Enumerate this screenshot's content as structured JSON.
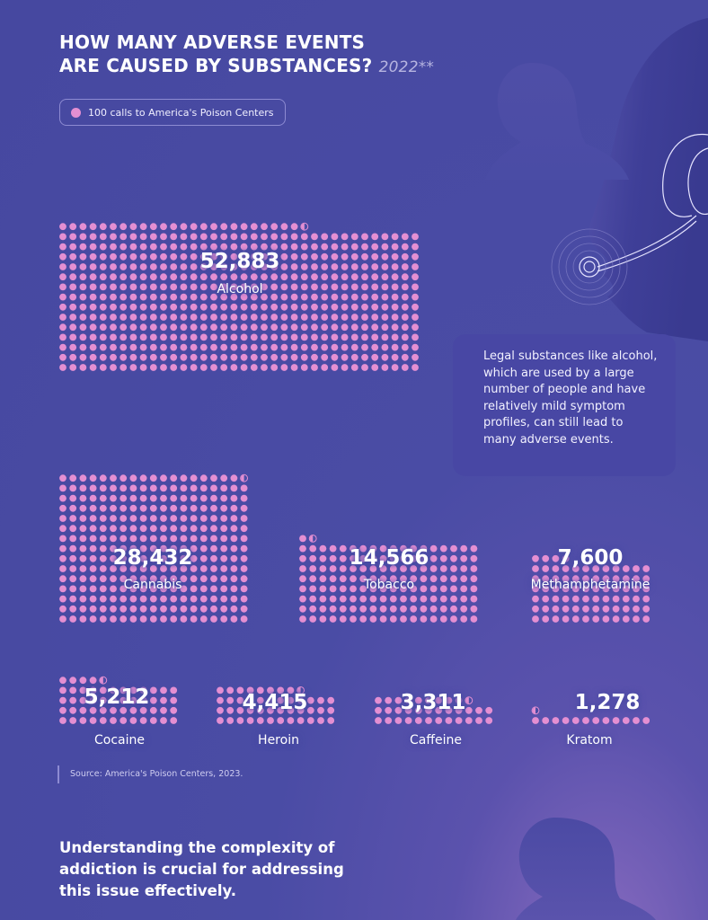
{
  "title": {
    "line1": "HOW MANY ADVERSE EVENTS",
    "line2": "ARE CAUSED BY SUBSTANCES?",
    "year": "2022**"
  },
  "legend": {
    "label": "100 calls to America's Poison Centers"
  },
  "callout": {
    "text": "Legal substances like alcohol, which are used by a large number of people and have relatively mild symptom profiles, can still lead to many adverse events."
  },
  "source": "Source: America's Poison Centers, 2023.",
  "bottom_text": "Understanding the complexity of addiction is crucial for addressing this issue effectively.",
  "colors": {
    "background": "#4a4ca5",
    "dot": "#e48fd2",
    "text": "#ffffff",
    "silhouette": "#3f3e94"
  },
  "chart_data": {
    "type": "waffle",
    "unit": "100 calls to America's Poison Centers",
    "title": "HOW MANY ADVERSE EVENTS ARE CAUSED BY SUBSTANCES? 2022**",
    "series": [
      {
        "name": "Alcohol",
        "value": 52883,
        "value_label": "52,883"
      },
      {
        "name": "Cannabis",
        "value": 28432,
        "value_label": "28,432"
      },
      {
        "name": "Tobacco",
        "value": 14566,
        "value_label": "14,566"
      },
      {
        "name": "Methamphetamine",
        "value": 7600,
        "value_label": "7,600"
      },
      {
        "name": "Cocaine",
        "value": 5212,
        "value_label": "5,212"
      },
      {
        "name": "Heroin",
        "value": 4415,
        "value_label": "4,415"
      },
      {
        "name": "Caffeine",
        "value": 3311,
        "value_label": "3,311"
      },
      {
        "name": "Kratom",
        "value": 1278,
        "value_label": "1,278"
      }
    ]
  }
}
